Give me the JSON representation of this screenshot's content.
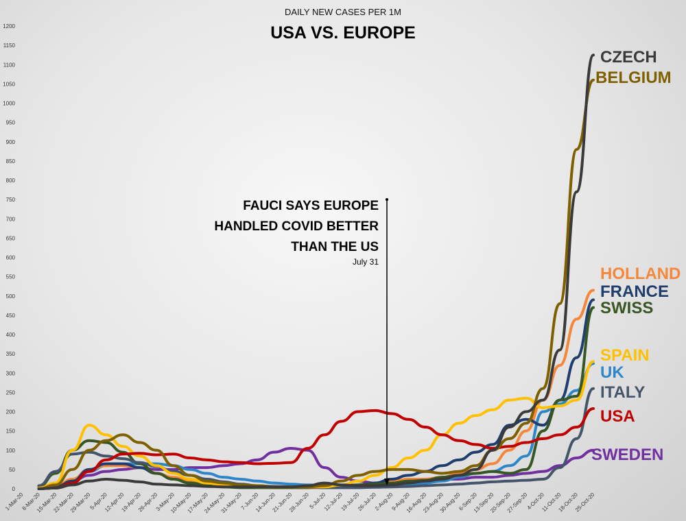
{
  "chart_data": {
    "type": "line",
    "subtitle": "DAILY NEW CASES PER 1M",
    "title": "USA VS. EUROPE",
    "ylim": [
      0,
      1200
    ],
    "yticks": [
      0,
      50,
      100,
      150,
      200,
      250,
      300,
      350,
      400,
      450,
      500,
      550,
      600,
      650,
      700,
      750,
      800,
      850,
      900,
      950,
      1000,
      1050,
      1100,
      1150,
      1200
    ],
    "grid": false,
    "categories": [
      "1-Mar-20",
      "8-Mar-20",
      "15-Mar-20",
      "22-Mar-20",
      "29-Mar-20",
      "5-Apr-20",
      "12-Apr-20",
      "19-Apr-20",
      "26-Apr-20",
      "3-May-20",
      "10-May-20",
      "17-May-20",
      "24-May-20",
      "31-May-20",
      "7-Jun-20",
      "14-Jun-20",
      "21-Jun-20",
      "28-Jun-20",
      "5-Jul-20",
      "12-Jul-20",
      "19-Jul-20",
      "26-Jul-20",
      "2-Aug-20",
      "9-Aug-20",
      "16-Aug-20",
      "23-Aug-20",
      "30-Aug-20",
      "6-Sep-20",
      "13-Sep-20",
      "20-Sep-20",
      "27-Sep-20",
      "4-Oct-20",
      "11-Oct-20",
      "18-Oct-20",
      "25-Oct-20"
    ],
    "series": [
      {
        "name": "SWEDEN",
        "color": "#7030A0",
        "values": [
          0,
          0,
          5,
          20,
          35,
          45,
          50,
          55,
          50,
          50,
          55,
          55,
          60,
          65,
          75,
          95,
          105,
          100,
          55,
          30,
          20,
          15,
          15,
          20,
          20,
          25,
          25,
          30,
          30,
          35,
          40,
          45,
          60,
          80,
          100
        ]
      },
      {
        "name": "UK",
        "color": "#2E86C8",
        "values": [
          0,
          0,
          2,
          15,
          45,
          60,
          65,
          65,
          65,
          60,
          50,
          40,
          30,
          25,
          20,
          15,
          12,
          10,
          8,
          8,
          8,
          8,
          10,
          12,
          15,
          20,
          30,
          40,
          45,
          60,
          85,
          200,
          220,
          255,
          325
        ]
      },
      {
        "name": "HOLLAND",
        "color": "#F4873A",
        "values": [
          0,
          0,
          5,
          25,
          50,
          60,
          60,
          55,
          40,
          30,
          20,
          12,
          8,
          5,
          4,
          3,
          3,
          3,
          3,
          5,
          10,
          15,
          20,
          25,
          25,
          30,
          40,
          50,
          65,
          100,
          150,
          230,
          320,
          440,
          515
        ]
      },
      {
        "name": "FRANCE",
        "color": "#1F3D6D",
        "values": [
          0,
          0,
          5,
          20,
          50,
          65,
          65,
          55,
          40,
          25,
          15,
          10,
          6,
          5,
          4,
          4,
          4,
          5,
          6,
          8,
          10,
          15,
          25,
          35,
          45,
          60,
          75,
          95,
          115,
          165,
          180,
          165,
          230,
          340,
          490
        ]
      },
      {
        "name": "SWISS",
        "color": "#375623",
        "values": [
          0,
          5,
          40,
          100,
          125,
          120,
          95,
          65,
          40,
          25,
          15,
          8,
          5,
          3,
          3,
          3,
          3,
          3,
          5,
          8,
          10,
          12,
          15,
          20,
          22,
          30,
          35,
          40,
          45,
          40,
          50,
          150,
          230,
          240,
          470
        ]
      },
      {
        "name": "ITALY",
        "color": "#44546A",
        "values": [
          0,
          8,
          45,
          90,
          95,
          85,
          78,
          68,
          58,
          45,
          35,
          25,
          18,
          12,
          8,
          6,
          5,
          4,
          3,
          3,
          3,
          4,
          5,
          6,
          8,
          10,
          12,
          15,
          18,
          20,
          22,
          25,
          55,
          130,
          260
        ]
      },
      {
        "name": "SPAIN",
        "color": "#FFC000",
        "values": [
          0,
          2,
          15,
          100,
          165,
          140,
          110,
          85,
          60,
          40,
          25,
          15,
          10,
          8,
          5,
          5,
          5,
          5,
          5,
          10,
          20,
          35,
          55,
          80,
          100,
          140,
          170,
          190,
          205,
          230,
          235,
          210,
          215,
          230,
          330
        ]
      },
      {
        "name": "USA",
        "color": "#C00000",
        "values": [
          0,
          0,
          2,
          15,
          45,
          75,
          90,
          92,
          88,
          90,
          80,
          75,
          70,
          68,
          65,
          66,
          68,
          105,
          140,
          175,
          200,
          203,
          195,
          180,
          160,
          140,
          125,
          115,
          105,
          110,
          120,
          130,
          140,
          160,
          208
        ]
      },
      {
        "name": "BELGIUM",
        "color": "#7F6000",
        "values": [
          0,
          0,
          10,
          50,
          100,
          125,
          140,
          120,
          100,
          60,
          35,
          20,
          15,
          10,
          8,
          5,
          5,
          5,
          8,
          20,
          35,
          45,
          50,
          50,
          45,
          40,
          45,
          60,
          100,
          130,
          170,
          260,
          480,
          880,
          1060
        ]
      },
      {
        "name": "CZECH",
        "color": "#3A3A3A",
        "values": [
          0,
          0,
          2,
          10,
          20,
          25,
          22,
          18,
          12,
          10,
          8,
          6,
          5,
          5,
          5,
          5,
          5,
          8,
          15,
          10,
          8,
          8,
          10,
          15,
          20,
          25,
          35,
          50,
          100,
          160,
          200,
          230,
          360,
          770,
          1125
        ]
      }
    ],
    "annotation": {
      "lines": [
        "FAUCI SAYS EUROPE",
        "HANDLED COVID BETTER",
        "THAN THE US"
      ],
      "date": "July 31",
      "x": "31-Jul-20"
    }
  }
}
